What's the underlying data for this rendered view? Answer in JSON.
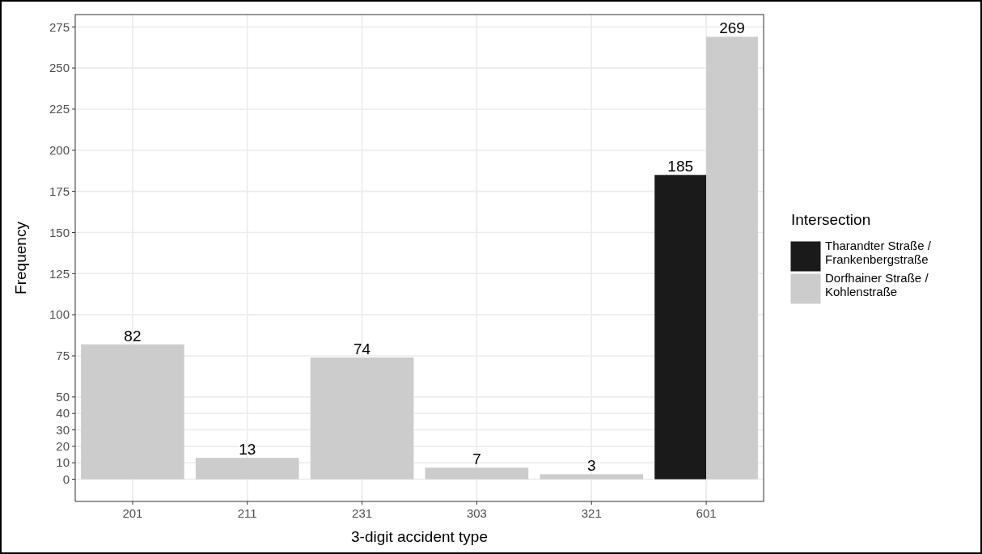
{
  "chart_data": {
    "type": "bar",
    "xlabel": "3-digit accident type",
    "ylabel": "Frequency",
    "legend_title": "Intersection",
    "categories": [
      "201",
      "211",
      "231",
      "303",
      "321",
      "601"
    ],
    "series": [
      {
        "name": "Tharandter Straße /\nFrankenbergstraße",
        "color": "#1a1a1a",
        "values": [
          null,
          null,
          null,
          null,
          null,
          185
        ]
      },
      {
        "name": "Dorfhainer Straße /\nKohlenstraße",
        "color": "#cccccc",
        "values": [
          82,
          13,
          74,
          7,
          3,
          269
        ]
      }
    ],
    "ylim": [
      -13.5,
      282.5
    ],
    "yticks": [
      0,
      10,
      20,
      30,
      40,
      50,
      75,
      100,
      125,
      150,
      175,
      200,
      225,
      250,
      275
    ],
    "data_labels": true,
    "grid": true,
    "legend": "right"
  }
}
